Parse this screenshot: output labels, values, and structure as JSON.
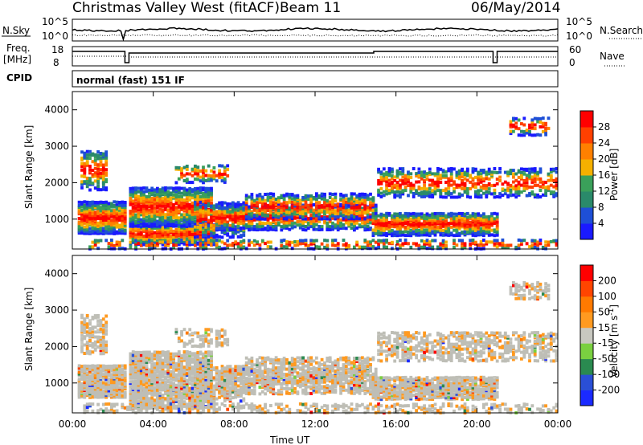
{
  "header": {
    "title": "Christmas Valley West (fitACF)",
    "beam": "Beam 11",
    "date": "06/May/2014"
  },
  "strip_labels": {
    "nsky": "N.Sky",
    "nsearch": "N.Search",
    "freq": "Freq.",
    "freq_unit": "[MHz]",
    "nave": "Nave",
    "cpid": "CPID",
    "cpid_value": "normal (fast) 151 IF",
    "noise_left_top": "10^5",
    "noise_left_bottom": "10^0",
    "noise_right_top": "10^5",
    "noise_right_bottom": "10^0",
    "freq_top": "18",
    "freq_bottom": "8",
    "nave_top": "60",
    "nave_bottom": "0"
  },
  "colors": {
    "power_scale": [
      "#1a1aff",
      "#1e4fd6",
      "#2a8a6a",
      "#3aa05a",
      "#f5b000",
      "#ff8000",
      "#ff4000",
      "#ff0000"
    ],
    "velocity_scale": [
      "#1a2aff",
      "#2a4fd6",
      "#2a8a50",
      "#7ad040",
      "#c8c8c0",
      "#ff9a20",
      "#ff7a00",
      "#ff4500",
      "#ff0000"
    ],
    "ground_scatter": "#bebeb6"
  },
  "chart_data": [
    {
      "type": "heatmap",
      "panel": "power",
      "ylabel": "Slant Range [km]",
      "xlabel": "Time UT",
      "y_ticks": [
        "1000",
        "2000",
        "3000",
        "4000"
      ],
      "x_ticks": [
        "00:00",
        "04:00",
        "08:00",
        "12:00",
        "16:00",
        "20:00",
        "00:00"
      ],
      "ylim": [
        180,
        4500
      ],
      "xlim_hours": [
        0,
        24
      ],
      "colorbar": {
        "label": "Power [dB]",
        "ticks": [
          "4",
          "8",
          "12",
          "16",
          "20",
          "24",
          "28"
        ],
        "range": [
          0,
          30
        ]
      }
    },
    {
      "type": "heatmap",
      "panel": "velocity",
      "ylabel": "Slant Range [km]",
      "xlabel": "Time UT",
      "y_ticks": [
        "1000",
        "2000",
        "3000",
        "4000"
      ],
      "x_ticks": [
        "00:00",
        "04:00",
        "08:00",
        "12:00",
        "16:00",
        "20:00",
        "00:00"
      ],
      "ylim": [
        180,
        4500
      ],
      "xlim_hours": [
        0,
        24
      ],
      "colorbar": {
        "label": "Velocity [m s^-1]",
        "ticks": [
          "200",
          "100",
          "50",
          "15",
          "-15",
          "-50",
          "-100",
          "-200"
        ]
      }
    }
  ]
}
